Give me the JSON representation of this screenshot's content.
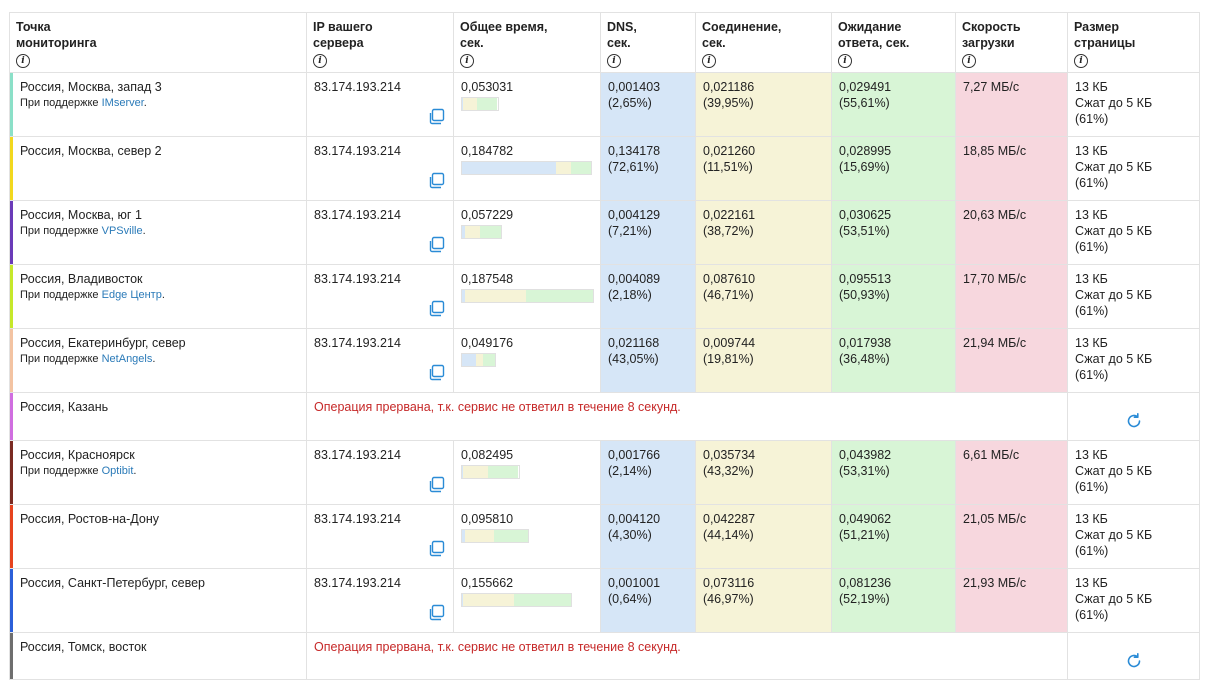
{
  "headers": {
    "location": [
      "Точка",
      "мониторинга"
    ],
    "ip": [
      "IP вашего",
      "сервера"
    ],
    "total": [
      "Общее время,",
      "сек."
    ],
    "dns": [
      "DNS,",
      "сек."
    ],
    "conn": [
      "Соединение,",
      "сек."
    ],
    "wait": [
      "Ожидание",
      "ответа, сек."
    ],
    "speed": [
      "Скорость",
      "загрузки"
    ],
    "size": [
      "Размер",
      "страницы"
    ],
    "info_icon": "i"
  },
  "sponsor_prefix": "При поддержке ",
  "error_message": "Операция прервана, т.к. сервис не ответил в течение 8 секунд.",
  "rows": [
    {
      "type": "ok",
      "location": "Россия, Москва, запад 3",
      "sponsor": "IMserver",
      "color": "#8be0c8",
      "ip": "83.174.193.214",
      "total": "0,053031",
      "total_val": 0.053031,
      "dns": "0,001403",
      "dns_pct": "(2,65%)",
      "dns_val": 0.001403,
      "conn": "0,021186",
      "conn_pct": "(39,95%)",
      "conn_val": 0.021186,
      "wait": "0,029491",
      "wait_pct": "(55,61%)",
      "wait_val": 0.029491,
      "speed": "7,27 МБ/с",
      "size": "13 КБ",
      "compressed": "Сжат до 5 КБ",
      "ratio": "(61%)"
    },
    {
      "type": "ok",
      "location": "Россия, Москва, север 2",
      "sponsor": "",
      "color": "#f2d81e",
      "ip": "83.174.193.214",
      "total": "0,184782",
      "total_val": 0.184782,
      "dns": "0,134178",
      "dns_pct": "(72,61%)",
      "dns_val": 0.134178,
      "conn": "0,021260",
      "conn_pct": "(11,51%)",
      "conn_val": 0.02126,
      "wait": "0,028995",
      "wait_pct": "(15,69%)",
      "wait_val": 0.028995,
      "speed": "18,85 МБ/с",
      "size": "13 КБ",
      "compressed": "Сжат до 5 КБ",
      "ratio": "(61%)"
    },
    {
      "type": "ok",
      "location": "Россия, Москва, юг 1",
      "sponsor": "VPSville",
      "color": "#6a3bb8",
      "ip": "83.174.193.214",
      "total": "0,057229",
      "total_val": 0.057229,
      "dns": "0,004129",
      "dns_pct": "(7,21%)",
      "dns_val": 0.004129,
      "conn": "0,022161",
      "conn_pct": "(38,72%)",
      "conn_val": 0.022161,
      "wait": "0,030625",
      "wait_pct": "(53,51%)",
      "wait_val": 0.030625,
      "speed": "20,63 МБ/с",
      "size": "13 КБ",
      "compressed": "Сжат до 5 КБ",
      "ratio": "(61%)"
    },
    {
      "type": "ok",
      "location": "Россия, Владивосток",
      "sponsor": "Edge Центр",
      "color": "#c6e82a",
      "ip": "83.174.193.214",
      "total": "0,187548",
      "total_val": 0.187548,
      "dns": "0,004089",
      "dns_pct": "(2,18%)",
      "dns_val": 0.004089,
      "conn": "0,087610",
      "conn_pct": "(46,71%)",
      "conn_val": 0.08761,
      "wait": "0,095513",
      "wait_pct": "(50,93%)",
      "wait_val": 0.095513,
      "speed": "17,70 МБ/с",
      "size": "13 КБ",
      "compressed": "Сжат до 5 КБ",
      "ratio": "(61%)"
    },
    {
      "type": "ok",
      "location": "Россия, Екатеринбург, север",
      "sponsor": "NetAngels",
      "color": "#f3c3a2",
      "ip": "83.174.193.214",
      "total": "0,049176",
      "total_val": 0.049176,
      "dns": "0,021168",
      "dns_pct": "(43,05%)",
      "dns_val": 0.021168,
      "conn": "0,009744",
      "conn_pct": "(19,81%)",
      "conn_val": 0.009744,
      "wait": "0,017938",
      "wait_pct": "(36,48%)",
      "wait_val": 0.017938,
      "speed": "21,94 МБ/с",
      "size": "13 КБ",
      "compressed": "Сжат до 5 КБ",
      "ratio": "(61%)"
    },
    {
      "type": "error",
      "location": "Россия, Казань",
      "color": "#d06ee0"
    },
    {
      "type": "ok",
      "location": "Россия, Красноярск",
      "sponsor": "Optibit",
      "color": "#7a2a22",
      "ip": "83.174.193.214",
      "total": "0,082495",
      "total_val": 0.082495,
      "dns": "0,001766",
      "dns_pct": "(2,14%)",
      "dns_val": 0.001766,
      "conn": "0,035734",
      "conn_pct": "(43,32%)",
      "conn_val": 0.035734,
      "wait": "0,043982",
      "wait_pct": "(53,31%)",
      "wait_val": 0.043982,
      "speed": "6,61 МБ/с",
      "size": "13 КБ",
      "compressed": "Сжат до 5 КБ",
      "ratio": "(61%)"
    },
    {
      "type": "ok",
      "location": "Россия, Ростов-на-Дону",
      "sponsor": "",
      "color": "#e6431e",
      "ip": "83.174.193.214",
      "total": "0,095810",
      "total_val": 0.09581,
      "dns": "0,004120",
      "dns_pct": "(4,30%)",
      "dns_val": 0.00412,
      "conn": "0,042287",
      "conn_pct": "(44,14%)",
      "conn_val": 0.042287,
      "wait": "0,049062",
      "wait_pct": "(51,21%)",
      "wait_val": 0.049062,
      "speed": "21,05 МБ/с",
      "size": "13 КБ",
      "compressed": "Сжат до 5 КБ",
      "ratio": "(61%)"
    },
    {
      "type": "ok",
      "location": "Россия, Санкт-Петербург, север",
      "sponsor": "",
      "color": "#2b5fd9",
      "ip": "83.174.193.214",
      "total": "0,155662",
      "total_val": 0.155662,
      "dns": "0,001001",
      "dns_pct": "(0,64%)",
      "dns_val": 0.001001,
      "conn": "0,073116",
      "conn_pct": "(46,97%)",
      "conn_val": 0.073116,
      "wait": "0,081236",
      "wait_pct": "(52,19%)",
      "wait_val": 0.081236,
      "speed": "21,93 МБ/с",
      "size": "13 КБ",
      "compressed": "Сжат до 5 КБ",
      "ratio": "(61%)"
    },
    {
      "type": "error",
      "location": "Россия, Томск, восток",
      "color": "#6e6e6e"
    }
  ]
}
